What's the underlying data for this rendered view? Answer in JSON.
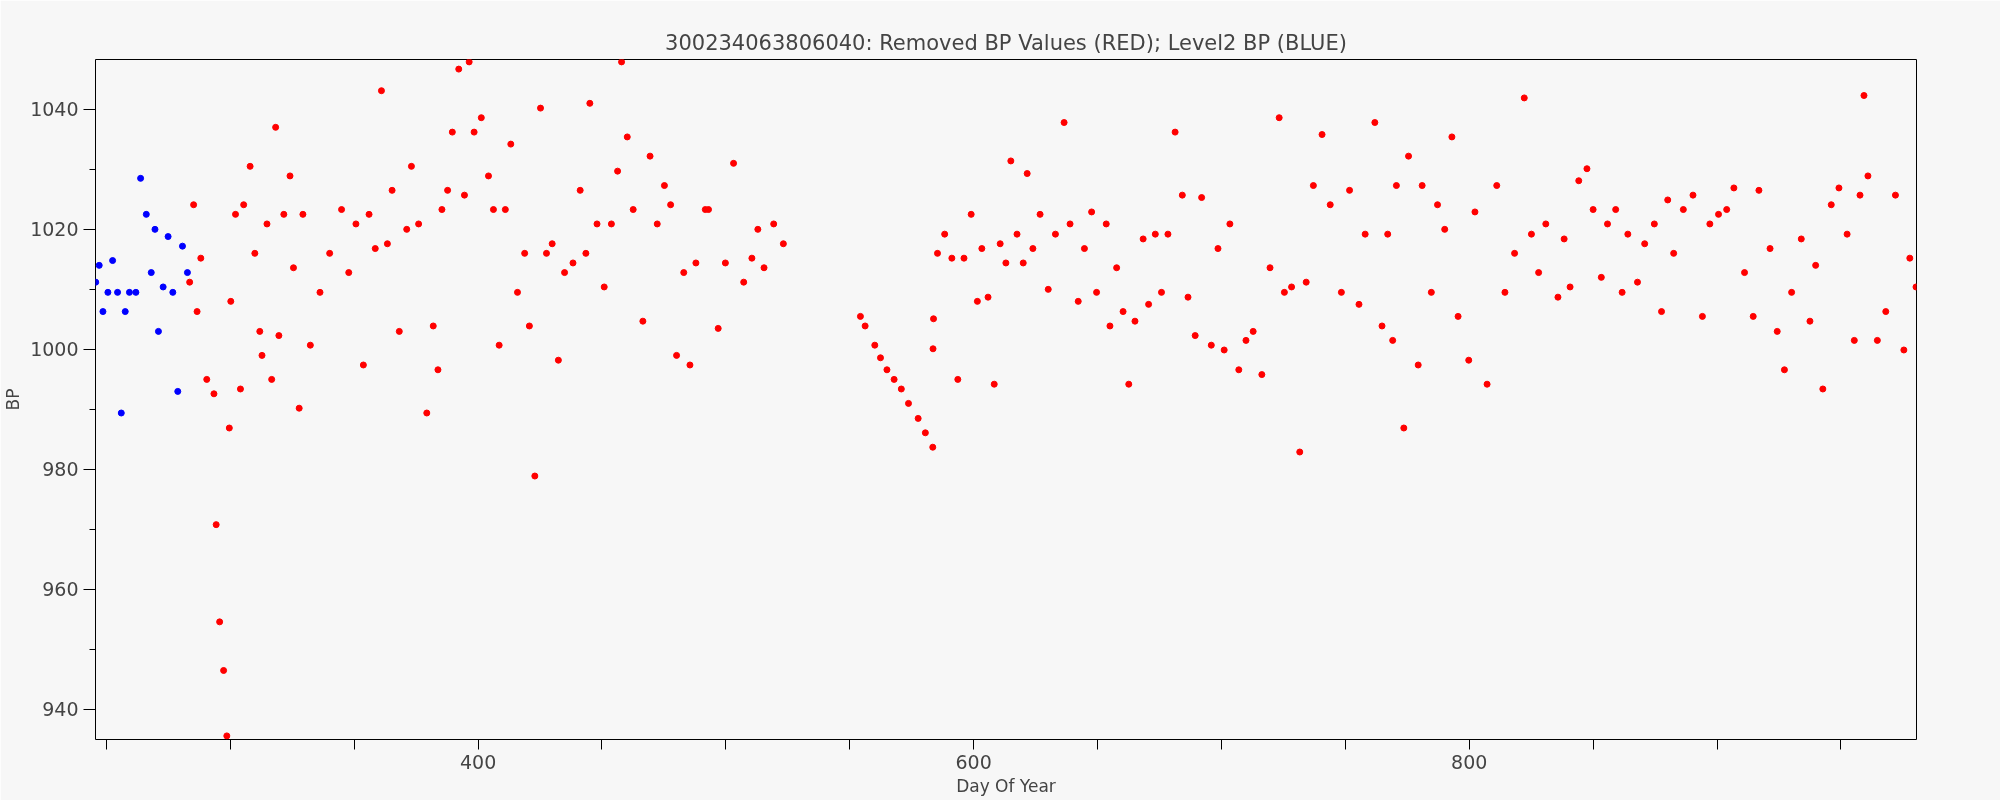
{
  "chart_data": {
    "type": "scatter",
    "title": "300234063806040: Removed BP Values (RED); Level2 BP (BLUE)",
    "xlabel": "Day Of Year",
    "ylabel": "BP",
    "marker": "circle",
    "xlim": [
      245.6,
      980.5
    ],
    "ylim": [
      935,
      1048.3
    ],
    "xticks": [
      {
        "value": 250,
        "label": null
      },
      {
        "value": 300,
        "label": null
      },
      {
        "value": 350,
        "label": null
      },
      400,
      {
        "value": 450,
        "label": null
      },
      {
        "value": 500,
        "label": null
      },
      {
        "value": 550,
        "label": null
      },
      600,
      {
        "value": 650,
        "label": null
      },
      {
        "value": 700,
        "label": null
      },
      {
        "value": 750,
        "label": null
      },
      800,
      {
        "value": 850,
        "label": null
      },
      {
        "value": 900,
        "label": null
      },
      {
        "value": 950,
        "label": null
      }
    ],
    "yticks": [
      940,
      {
        "value": 950,
        "label": null
      },
      960,
      {
        "value": 970,
        "label": null
      },
      980,
      {
        "value": 990,
        "label": null
      },
      1000,
      {
        "value": 1010,
        "label": null
      },
      1020,
      {
        "value": 1030,
        "label": null
      },
      1040
    ],
    "series": [
      {
        "color": "#0000ff",
        "x": [
          245.7,
          247.1,
          248.6,
          250.6,
          252.5,
          254.5,
          256,
          257.6,
          259.3,
          261.9,
          263.8,
          266.1,
          268.1,
          269.6,
          271,
          272.9,
          274.9,
          276.8,
          278.8,
          280.7,
          282.7
        ],
        "values": [
          1011.2,
          1014,
          1006.3,
          1009.5,
          1014.8,
          1009.5,
          989.4,
          1006.3,
          1009.5,
          1009.5,
          1028.5,
          1022.5,
          1012.8,
          1020,
          1003,
          1010.4,
          1018.8,
          1009.5,
          993,
          1017.2,
          1012.8
        ]
      },
      {
        "color": "#ff0000",
        "x": [
          283.6,
          285.2,
          286.6,
          288.1,
          290.5,
          293.4,
          294.3,
          295.7,
          297.3,
          298.6,
          299.6,
          300.2,
          302.1,
          304.1,
          305.4,
          308,
          309.9,
          311.9,
          312.8,
          314.8,
          316.7,
          318.3,
          319.6,
          321.6,
          324.1,
          325.5,
          327.8,
          329.3,
          332.3,
          336.2,
          340.1,
          344.9,
          347.8,
          350.7,
          353.7,
          356,
          358.5,
          361,
          363.4,
          365.3,
          368.2,
          371.2,
          373.1,
          376,
          379.3,
          381.9,
          383.8,
          385.4,
          387.7,
          389.6,
          392.2,
          394.5,
          396.4,
          398.4,
          401.3,
          404.2,
          406.2,
          408.5,
          411,
          413.2,
          415.9,
          418.8,
          420.7,
          422.9,
          425.2,
          427.6,
          429.9,
          432.4,
          434.9,
          438.3,
          441.2,
          443.5,
          445.1,
          448,
          450.9,
          453.8,
          456.3,
          457.9,
          460.2,
          462.6,
          466.5,
          469.4,
          472.3,
          475.2,
          477.7,
          480.1,
          483,
          485.5,
          487.9,
          491.7,
          493,
          496.9,
          499.8,
          503.1,
          507.2,
          510.5,
          512.9,
          515.4,
          519.3,
          523.2,
          554.3,
          556.2,
          560.1,
          562.4,
          565,
          567.9,
          570.8,
          573.7,
          577.6,
          580.5,
          583.5,
          583.6,
          583.8,
          585.4,
          588.3,
          591.2,
          593.6,
          596.1,
          599,
          601.5,
          603.3,
          605.8,
          608.3,
          610.7,
          613,
          615,
          617.5,
          620,
          621.6,
          623.9,
          626.8,
          630.1,
          633,
          636.5,
          638.9,
          642.2,
          644.7,
          647.6,
          649.6,
          653.5,
          655,
          657.7,
          660.3,
          662.6,
          665.1,
          668.4,
          670.6,
          673.3,
          675.8,
          678.4,
          681.3,
          684.2,
          686.5,
          689.4,
          692,
          695.9,
          698.6,
          701.1,
          703.4,
          707,
          709.9,
          712.8,
          716.3,
          719.6,
          723.3,
          725.4,
          728.3,
          731.6,
          734.2,
          737.1,
          740.6,
          743.9,
          748.4,
          751.7,
          755.5,
          758,
          761.9,
          764.8,
          767.1,
          769.1,
          770.6,
          773.6,
          775.5,
          779.4,
          781,
          784.7,
          787.2,
          790.1,
          793,
          795.5,
          799.8,
          802.3,
          807.2,
          811.1,
          814.4,
          818.3,
          822.2,
          825.1,
          828,
          830.9,
          835.8,
          838.3,
          840.7,
          844.2,
          847.5,
          850,
          853.3,
          855.8,
          859.1,
          861.7,
          864,
          867.9,
          870.8,
          874.7,
          877.6,
          880.1,
          882.5,
          886.4,
          890.3,
          894.1,
          897.1,
          900.6,
          903.9,
          906.8,
          911.1,
          914.6,
          916.9,
          921.4,
          924.3,
          927.2,
          930.1,
          934,
          937.5,
          939.8,
          942.7,
          946.1,
          949.2,
          952.5,
          955.4,
          957.7,
          959.3,
          960.9,
          964.7,
          968.1,
          972,
          975.4,
          977.8,
          980.3
        ],
        "values": [
          1011.2,
          1024.1,
          1006.3,
          1015.2,
          995,
          992.6,
          970.8,
          954.6,
          946.5,
          935.6,
          986.9,
          1008,
          1022.5,
          993.4,
          1024.1,
          1030.5,
          1016,
          1003,
          999,
          1020.9,
          995,
          1037,
          1002.3,
          1022.5,
          1028.9,
          1013.6,
          990.2,
          1022.5,
          1000.7,
          1009.5,
          1016,
          1023.3,
          1012.8,
          1020.9,
          997.4,
          1022.5,
          1016.8,
          1043.1,
          1017.6,
          1026.5,
          1003,
          1020,
          1030.5,
          1020.9,
          989.4,
          1003.9,
          996.6,
          1023.3,
          1026.5,
          1036.2,
          1046.7,
          1025.7,
          1047.9,
          1036.2,
          1038.6,
          1028.9,
          1023.3,
          1000.7,
          1023.3,
          1034.2,
          1009.5,
          1016,
          1003.9,
          978.9,
          1040.2,
          1016,
          1017.6,
          998.2,
          1012.8,
          1014.4,
          1026.5,
          1016,
          1041,
          1020.9,
          1010.4,
          1020.9,
          1029.7,
          1047.9,
          1035.4,
          1023.3,
          1004.7,
          1032.2,
          1020.9,
          1027.3,
          1024.1,
          999,
          1012.8,
          997.4,
          1014.4,
          1023.3,
          1023.3,
          1003.5,
          1014.4,
          1031,
          1011.2,
          1015.2,
          1020,
          1013.6,
          1020.9,
          1017.6,
          1005.5,
          1003.9,
          1000.7,
          998.6,
          996.6,
          995,
          993.4,
          991,
          988.5,
          986.1,
          983.7,
          1000.1,
          1005.1,
          1016,
          1019.2,
          1015.2,
          995,
          1015.2,
          1022.5,
          1008,
          1016.8,
          1008.7,
          994.2,
          1017.6,
          1014.4,
          1031.4,
          1019.2,
          1014.4,
          1029.3,
          1016.8,
          1022.5,
          1010,
          1019.2,
          1037.8,
          1020.9,
          1008,
          1016.8,
          1022.9,
          1009.5,
          1020.9,
          1003.9,
          1013.6,
          1006.3,
          994.2,
          1004.7,
          1018.4,
          1007.5,
          1019.2,
          1009.5,
          1019.2,
          1036.2,
          1025.7,
          1008.7,
          1002.3,
          1025.3,
          1000.7,
          1016.8,
          999.9,
          1020.9,
          996.6,
          1001.5,
          1003,
          995.8,
          1013.6,
          1038.6,
          1009.5,
          1010.4,
          982.9,
          1011.2,
          1027.3,
          1035.8,
          1024.1,
          1009.5,
          1026.5,
          1007.5,
          1019.2,
          1037.8,
          1003.9,
          1019.2,
          1001.5,
          1027.3,
          986.9,
          1032.2,
          997.4,
          1027.3,
          1009.5,
          1024.1,
          1020,
          1035.4,
          1005.5,
          998.2,
          1022.9,
          994.2,
          1027.3,
          1009.5,
          1016,
          1041.9,
          1019.2,
          1012.8,
          1020.9,
          1008.7,
          1018.4,
          1010.4,
          1028.1,
          1030.1,
          1023.3,
          1012,
          1020.9,
          1023.3,
          1009.5,
          1019.2,
          1011.2,
          1017.6,
          1020.9,
          1006.3,
          1024.9,
          1016,
          1023.3,
          1025.7,
          1005.5,
          1020.9,
          1022.5,
          1023.3,
          1026.9,
          1012.8,
          1005.5,
          1026.5,
          1016.8,
          1003,
          996.6,
          1009.5,
          1018.4,
          1004.7,
          1014,
          993.4,
          1024.1,
          1026.9,
          1019.2,
          1001.5,
          1025.7,
          1042.3,
          1028.9,
          1001.5,
          1006.3,
          1025.7,
          999.9,
          1015.2,
          1010.4
        ]
      }
    ]
  }
}
